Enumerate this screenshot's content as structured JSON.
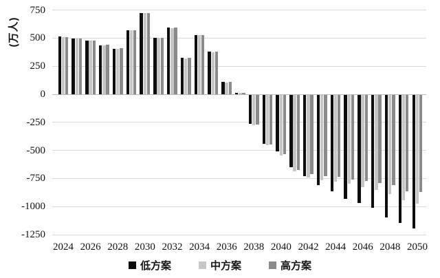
{
  "chart_data": {
    "type": "bar",
    "title": "",
    "ylabel": "(万人)",
    "xlabel": "",
    "grid": true,
    "legend_position": "bottom",
    "ylim": [
      -1250,
      750
    ],
    "yticks": [
      750,
      500,
      250,
      0,
      -250,
      -500,
      -750,
      -1000,
      -1250
    ],
    "x": [
      2024,
      2025,
      2026,
      2027,
      2028,
      2029,
      2030,
      2031,
      2032,
      2033,
      2034,
      2035,
      2036,
      2037,
      2038,
      2039,
      2040,
      2041,
      2042,
      2043,
      2044,
      2045,
      2046,
      2047,
      2048,
      2049,
      2050
    ],
    "xtick_labels": [
      "2024",
      "2026",
      "2028",
      "2030",
      "2032",
      "2034",
      "2036",
      "2038",
      "2040",
      "2042",
      "2044",
      "2046",
      "2048",
      "2050"
    ],
    "series": [
      {
        "name": "低方案",
        "color": "#0d0d0d",
        "values": [
          515,
          495,
          480,
          435,
          405,
          570,
          725,
          500,
          595,
          325,
          525,
          380,
          110,
          15,
          -260,
          -435,
          -505,
          -645,
          -725,
          -805,
          -855,
          -925,
          -965,
          -1005,
          -1090,
          -1140,
          -1190
        ]
      },
      {
        "name": "中方案",
        "color": "#c6c6c6",
        "values": [
          510,
          495,
          480,
          435,
          405,
          570,
          720,
          500,
          590,
          320,
          525,
          375,
          105,
          10,
          -270,
          -445,
          -540,
          -680,
          -735,
          -760,
          -770,
          -790,
          -820,
          -845,
          -885,
          -940,
          -970
        ]
      },
      {
        "name": "高方案",
        "color": "#8a8a8a",
        "values": [
          510,
          495,
          480,
          440,
          410,
          570,
          725,
          505,
          595,
          325,
          525,
          380,
          110,
          10,
          -265,
          -440,
          -530,
          -665,
          -705,
          -720,
          -730,
          -755,
          -765,
          -785,
          -800,
          -855,
          -865
        ]
      }
    ]
  }
}
